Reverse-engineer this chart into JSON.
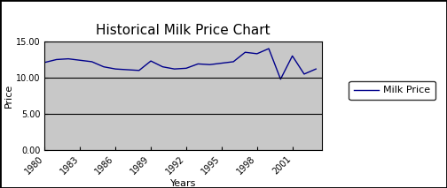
{
  "title": "Historical Milk Price Chart",
  "xlabel": "Years",
  "ylabel": "Price",
  "legend_label": "Milk Price",
  "ylim": [
    0,
    15
  ],
  "yticks": [
    0.0,
    5.0,
    10.0,
    15.0
  ],
  "ytick_labels": [
    "0.00",
    "5.00",
    "10.00",
    "15.00"
  ],
  "line_color": "#00008B",
  "bg_color": "#C8C8C8",
  "outer_bg": "#FFFFFF",
  "figure_border_color": "#000000",
  "years": [
    1980,
    1981,
    1982,
    1983,
    1984,
    1985,
    1986,
    1987,
    1988,
    1989,
    1990,
    1991,
    1992,
    1993,
    1994,
    1995,
    1996,
    1997,
    1998,
    1999,
    2000,
    2001,
    2002,
    2003
  ],
  "prices": [
    12.1,
    12.5,
    12.6,
    12.4,
    12.2,
    11.5,
    11.2,
    11.1,
    11.0,
    12.3,
    11.5,
    11.2,
    11.3,
    11.9,
    11.8,
    12.0,
    12.2,
    13.5,
    13.3,
    14.0,
    9.8,
    13.0,
    10.5,
    11.2
  ],
  "xticks": [
    1980,
    1983,
    1986,
    1989,
    1992,
    1995,
    1998,
    2001
  ],
  "xtick_labels": [
    "1980",
    "1983",
    "1986",
    "1989",
    "1992",
    "1995",
    "1998",
    "2001"
  ],
  "grid_color": "#000000",
  "border_color": "#000000",
  "title_fontsize": 11,
  "axis_label_fontsize": 8,
  "tick_fontsize": 7,
  "legend_fontsize": 8
}
